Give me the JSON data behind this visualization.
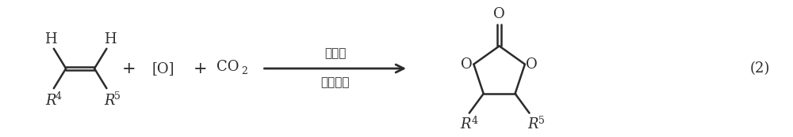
{
  "bg_color": "#ffffff",
  "line_color": "#2b2b2b",
  "text_color": "#2b2b2b",
  "fig_width": 10.0,
  "fig_height": 1.74,
  "dpi": 100,
  "equation_number": "(2)",
  "catalyst_top": "催化剂",
  "catalyst_bottom": "助催化剂",
  "plus_sign": "+",
  "oxygen_label": "[O]",
  "co2_label": "CO",
  "co2_sub": "2",
  "label_H1": "H",
  "label_H2": "H",
  "label_R4_left": "R",
  "label_R4_sup": "4",
  "label_R5_right": "R",
  "label_R5_sup": "5",
  "label_O_top": "O",
  "label_O_left": "O",
  "label_O_right": "O",
  "label_R4_prod": "R",
  "label_R4_prod_sup": "4",
  "label_R5_prod": "R",
  "label_R5_prod_sup": "5",
  "font_size_main": 13,
  "font_size_super": 9,
  "font_size_arrow_text": 11,
  "font_size_eq_num": 13
}
